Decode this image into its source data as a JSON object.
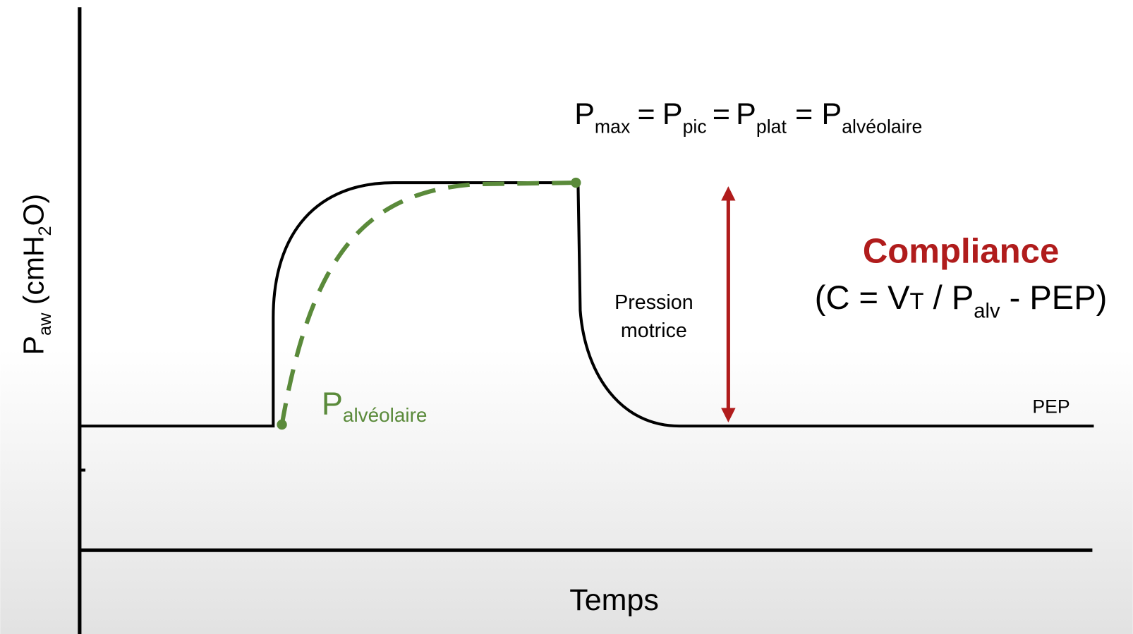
{
  "y_axis_label": {
    "symbol": "P",
    "subscript": "aw",
    "unit_start": " (cmH",
    "unit_subscript": "2",
    "unit_end": "O)"
  },
  "x_axis_label": "Temps",
  "formula": {
    "separator": "=",
    "terms": [
      {
        "symbol": "P",
        "subscript": "max"
      },
      {
        "symbol": "P",
        "subscript": "pic"
      },
      {
        "symbol": "P",
        "subscript": "plat"
      },
      {
        "symbol": "P",
        "subscript": "alvéolaire"
      }
    ]
  },
  "compliance": {
    "title": "Compliance",
    "equation": {
      "part1": "(C = V",
      "sub1": "T",
      "part2": " / P",
      "sub2": "alv",
      "part3": " - PEP)"
    }
  },
  "driving_pressure": {
    "lines": [
      "Pression",
      "motrice"
    ]
  },
  "peep_label": "PEP",
  "alveolar_label": {
    "symbol": "P",
    "subscript": "alvéolaire"
  }
}
